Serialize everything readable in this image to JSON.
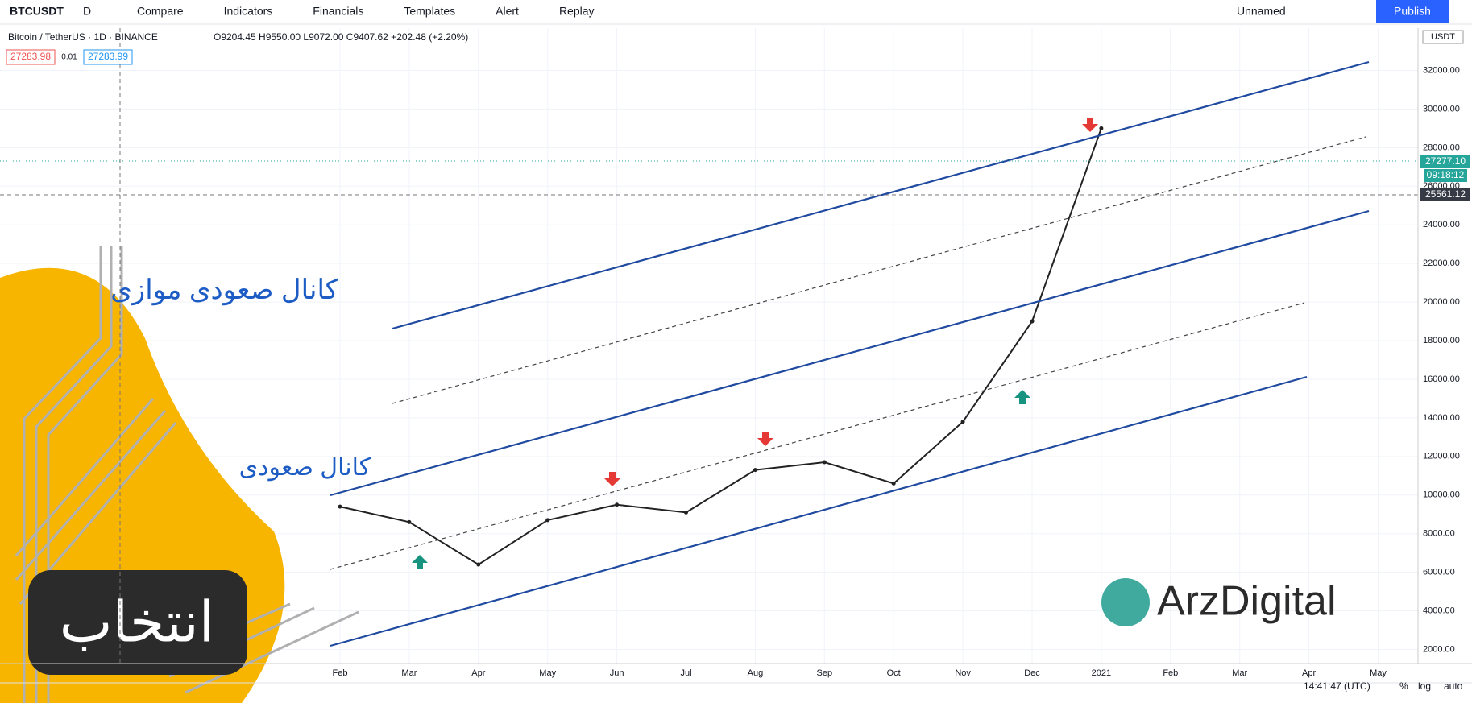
{
  "toolbar": {
    "symbol": "BTCUSDT",
    "interval": "D",
    "items": [
      "Compare",
      "Indicators",
      "Financials",
      "Templates",
      "Alert",
      "Replay"
    ],
    "layout_name": "Unnamed",
    "publish": "Publish"
  },
  "legend": {
    "title": "Bitcoin / TetherUS · 1D · BINANCE",
    "ohlc": "O9204.45 H9550.00 L9072.00 C9407.62 +202.48 (+2.20%)",
    "bid": "27283.98",
    "spread": "0.01",
    "ask": "27283.99"
  },
  "price_scale": {
    "currency": "USDT",
    "last_price": "27277.10",
    "countdown": "09:18:12",
    "crosshair_price": "25561.12"
  },
  "annotations": {
    "parallel_channel": "کانال صعودی موازی",
    "channel": "کانال صعودی",
    "brand": "ArzDigital",
    "logo": "انتخاب"
  },
  "status_bar": {
    "time": "14:41:47 (UTC)",
    "percent": "%",
    "log": "log",
    "auto": "auto"
  },
  "chart_data": {
    "type": "line",
    "color": "#222222",
    "categories": [
      "Feb",
      "Mar",
      "Apr",
      "May",
      "Jun",
      "Jul",
      "Aug",
      "Sep",
      "Oct",
      "Nov",
      "Dec",
      "2021",
      "Feb",
      "Mar",
      "Apr",
      "May"
    ],
    "values": [
      9400,
      8600,
      6400,
      8700,
      9500,
      9100,
      11300,
      11700,
      10600,
      13800,
      19000,
      29000,
      null,
      null,
      null,
      null
    ],
    "ylim": [
      1270,
      34190
    ],
    "yticks": [
      {
        "value": 2000,
        "label": "2000.00"
      },
      {
        "value": 4000,
        "label": "4000.00"
      },
      {
        "value": 6000,
        "label": "6000.00"
      },
      {
        "value": 8000,
        "label": "8000.00"
      },
      {
        "value": 10000,
        "label": "10000.00"
      },
      {
        "value": 12000,
        "label": "12000.00"
      },
      {
        "value": 14000,
        "label": "14000.00"
      },
      {
        "value": 16000,
        "label": "16000.00"
      },
      {
        "value": 18000,
        "label": "18000.00"
      },
      {
        "value": 20000,
        "label": "20000.00"
      },
      {
        "value": 22000,
        "label": "22000.00"
      },
      {
        "value": 24000,
        "label": "24000.00"
      },
      {
        "value": 26000,
        "label": "26000.00"
      },
      {
        "value": 28000,
        "label": "28000.00"
      },
      {
        "value": 30000,
        "label": "30000.00"
      },
      {
        "value": 32000,
        "label": "32000.00"
      }
    ],
    "grid": true
  }
}
